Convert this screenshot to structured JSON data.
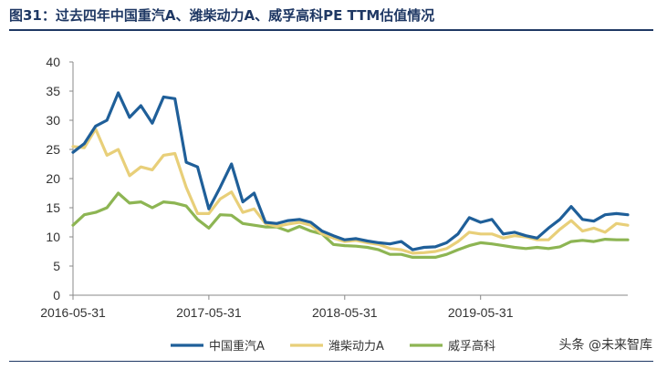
{
  "page": {
    "title": "图31：过去四年中国重汽A、潍柴动力A、威孚高科PE TTM估值情况",
    "watermark": "头条 @未来智库"
  },
  "chart_data": {
    "type": "line",
    "title": "",
    "xlabel": "",
    "ylabel": "",
    "ylim": [
      0,
      40
    ],
    "yticks": [
      0,
      5,
      10,
      15,
      20,
      25,
      30,
      35,
      40
    ],
    "xticks": [
      "2016-05-31",
      "2017-05-31",
      "2018-05-31",
      "2019-05-31"
    ],
    "xtick_positions": [
      0,
      12,
      24,
      36
    ],
    "grid": false,
    "legend": "bottom",
    "series": [
      {
        "name": "中国重汽A",
        "color": "#1f5f99",
        "values": [
          24.5,
          26,
          29,
          30,
          34.7,
          30.5,
          32.5,
          29.5,
          34,
          33.7,
          22.8,
          22,
          14.8,
          18.5,
          22.5,
          16,
          17.5,
          12.5,
          12.3,
          12.8,
          13,
          12.5,
          11,
          10.2,
          9.5,
          9.7,
          9.3,
          9,
          8.8,
          9.2,
          7.8,
          8.2,
          8.3,
          9,
          10.5,
          13.3,
          12.5,
          13,
          10.5,
          10.8,
          10.2,
          9.8,
          11.5,
          13,
          15.2,
          13,
          12.7,
          13.8,
          14,
          13.8
        ]
      },
      {
        "name": "潍柴动力A",
        "color": "#e8cf79",
        "values": [
          25.5,
          25.3,
          28.5,
          24,
          25,
          20.5,
          22,
          21.5,
          24,
          24.3,
          18.5,
          14,
          14,
          16.5,
          17.7,
          14.2,
          14.8,
          12.3,
          11.8,
          12.2,
          12.5,
          12,
          10.5,
          9.8,
          9.2,
          9.4,
          9,
          8.7,
          8,
          7.8,
          7.2,
          7.3,
          7.5,
          8,
          9.2,
          10.8,
          10.5,
          10.5,
          9.8,
          10.2,
          10,
          9.5,
          9.5,
          11.3,
          12.8,
          11,
          11.5,
          10.8,
          12.3,
          12
        ]
      },
      {
        "name": "威孚高科",
        "color": "#8db553",
        "values": [
          12,
          13.8,
          14.2,
          15,
          17.5,
          15.8,
          16,
          15,
          16,
          15.8,
          15.3,
          13,
          11.5,
          13.8,
          13.7,
          12.3,
          12,
          11.7,
          11.7,
          11,
          11.8,
          11,
          10.5,
          8.7,
          8.5,
          8.4,
          8.2,
          7.8,
          7,
          7,
          6.5,
          6.5,
          6.5,
          7,
          7.8,
          8.5,
          9,
          8.8,
          8.5,
          8.2,
          8,
          8.2,
          8,
          8.3,
          9.2,
          9.4,
          9.2,
          9.6,
          9.5,
          9.5
        ]
      }
    ]
  }
}
